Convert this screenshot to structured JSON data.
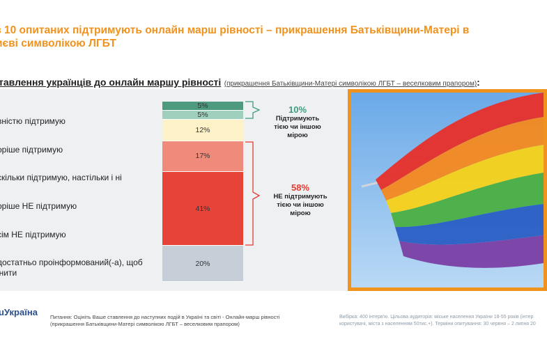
{
  "title": {
    "line1": "з 10 опитаних підтримують онлайн марш рівності – прикрашення Батьківщини-Матері  в",
    "line2": "иєві символікою ЛГБТ"
  },
  "subtitle": {
    "main": "тавлення українців до онлайн маршу рівності",
    "note": "(прикрашення Батьківщини-Матері символікою ЛГБТ – веселковим прапором)",
    "colon": ":"
  },
  "categories": [
    "вністю підтримую",
    "оріше підтримую",
    "скільки підтримую, настільки і ні",
    "оріше НЕ підтримую",
    "сім НЕ підтримую",
    "достатньо проінформований(-а), щоб",
    "інити"
  ],
  "groups": {
    "support": {
      "pct": "10%",
      "label1": "Підтримують",
      "label2": "тією чи іншою",
      "label3": "мірою",
      "color": "#3f9a7c"
    },
    "oppose": {
      "pct": "58%",
      "label1": "НЕ підтримують",
      "label2": "тією чи іншою",
      "label3": "мірою",
      "color": "#e53a2f"
    }
  },
  "chart_data": {
    "type": "bar",
    "orientation": "stacked-vertical",
    "title": "Ставлення українців до онлайн маршу рівності",
    "segments": [
      {
        "category": "Повністю підтримую",
        "value": 5,
        "label": "5%",
        "color": "#4e9a7e"
      },
      {
        "category": "Скоріше підтримую",
        "value": 5,
        "label": "5%",
        "color": "#9fd0bd"
      },
      {
        "category": "Наскільки підтримую, настільки і ні",
        "value": 12,
        "label": "12%",
        "color": "#fdf1c8"
      },
      {
        "category": "Скоріше НЕ підтримую",
        "value": 17,
        "label": "17%",
        "color": "#f08a7a"
      },
      {
        "category": "Зовсім НЕ підтримую",
        "value": 41,
        "label": "41%",
        "color": "#e84338"
      },
      {
        "category": "Недостатньо проінформований(-а)",
        "value": 20,
        "label": "20%",
        "color": "#c6ced8"
      }
    ]
  },
  "footer": {
    "logo_a": "u",
    "logo_b": "Україна",
    "question1": "Питання:  Оцініть Ваше ставлення до наступних подій в Україні та світі - Онлайн-марш рівності",
    "question2": "(прикрашення Батьківщини-Матері символікою ЛГБТ – веселковим прапором)",
    "sample1": "Вибірка: 400 інтерв'ю. Цільова аудиторія: міське населення України 18-55 років (інтер",
    "sample2": "користувачі, міста з населенням 50тис.+).  Терміни  опитування: 30 червня – 2 липня  20"
  }
}
